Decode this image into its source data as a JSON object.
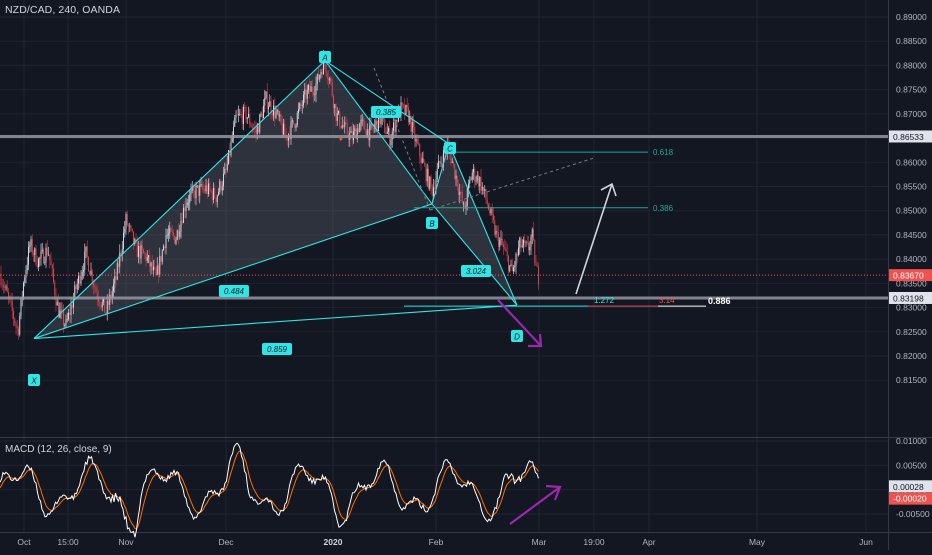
{
  "header": {
    "title": "NZD/CAD, 240, OANDA"
  },
  "macd_panel": {
    "title": "MACD (12, 26, close, 9)"
  },
  "chart_data": [
    {
      "type": "candlestick",
      "title": "NZD/CAD, 240, OANDA",
      "ylim": [
        0.8105,
        0.8935
      ],
      "x_ticks": [
        "Oct",
        "15:00",
        "Nov",
        "Dec",
        "2020",
        "Feb",
        "Mar",
        "19:00",
        "Apr",
        "May",
        "Jun"
      ],
      "y_ticks": [
        "0.89000",
        "0.88500",
        "0.88000",
        "0.87500",
        "0.87000",
        "0.86500",
        "0.86000",
        "0.85500",
        "0.85000",
        "0.84500",
        "0.84000",
        "0.83500",
        "0.83000",
        "0.82500",
        "0.82000",
        "0.81500"
      ],
      "price_labels": [
        {
          "value": 0.86533,
          "text": "0.86533",
          "style": "gray"
        },
        {
          "value": 0.8367,
          "text": "0.83670",
          "style": "red"
        },
        {
          "value": 0.83198,
          "text": "0.83198",
          "style": "gray"
        }
      ],
      "pattern_points": [
        {
          "label": "X",
          "price": 0.8236
        },
        {
          "label": "A",
          "price": 0.881
        },
        {
          "label": "B",
          "price": 0.8514
        },
        {
          "label": "C",
          "price": 0.8638
        },
        {
          "label": "D",
          "price": 0.8305
        }
      ],
      "pattern_ratios": [
        "0.484",
        "0.385",
        "3.024",
        "0.859"
      ],
      "fib_levels": [
        {
          "label": "0.618",
          "price": 0.8621
        },
        {
          "label": "0.386",
          "price": 0.8506
        }
      ],
      "target_labels": [
        "1.272",
        "3.14",
        "0.886"
      ]
    },
    {
      "type": "line",
      "title": "MACD (12, 26, close, 9)",
      "ylim": [
        -0.0076,
        0.0106
      ],
      "y_ticks": [
        "0.01000",
        "0.00500",
        "0.00000",
        "-0.00500"
      ],
      "series": [
        {
          "name": "MACD",
          "color": "#ffffff"
        },
        {
          "name": "Signal",
          "color": "#ff6d00"
        }
      ],
      "price_labels": [
        {
          "value": 0.00028,
          "text": "0.00028",
          "style": "white"
        },
        {
          "value": -0.0002,
          "text": "-0.00020",
          "style": "red"
        }
      ]
    }
  ]
}
